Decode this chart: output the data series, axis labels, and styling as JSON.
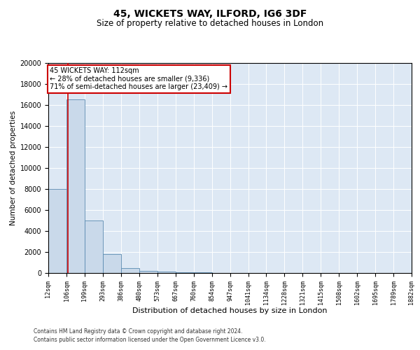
{
  "title1": "45, WICKETS WAY, ILFORD, IG6 3DF",
  "title2": "Size of property relative to detached houses in London",
  "xlabel": "Distribution of detached houses by size in London",
  "ylabel": "Number of detached properties",
  "property_size": 112,
  "property_label": "45 WICKETS WAY: 112sqm",
  "annotation_line1": "← 28% of detached houses are smaller (9,336)",
  "annotation_line2": "71% of semi-detached houses are larger (23,409) →",
  "footer1": "Contains HM Land Registry data © Crown copyright and database right 2024.",
  "footer2": "Contains public sector information licensed under the Open Government Licence v3.0.",
  "bin_edges": [
    12,
    106,
    199,
    293,
    386,
    480,
    573,
    667,
    760,
    854,
    947,
    1041,
    1134,
    1228,
    1321,
    1415,
    1508,
    1602,
    1695,
    1789,
    1882
  ],
  "bin_counts": [
    8000,
    16500,
    5000,
    1800,
    480,
    220,
    130,
    90,
    60,
    30,
    20,
    10,
    8,
    5,
    4,
    3,
    2,
    2,
    1,
    1
  ],
  "bar_color": "#c9d9ea",
  "bar_edge_color": "#5a8ab0",
  "line_color": "#cc0000",
  "annotation_box_color": "#cc0000",
  "background_color": "#dde8f4",
  "ylim": [
    0,
    20000
  ],
  "yticks": [
    0,
    2000,
    4000,
    6000,
    8000,
    10000,
    12000,
    14000,
    16000,
    18000,
    20000
  ]
}
